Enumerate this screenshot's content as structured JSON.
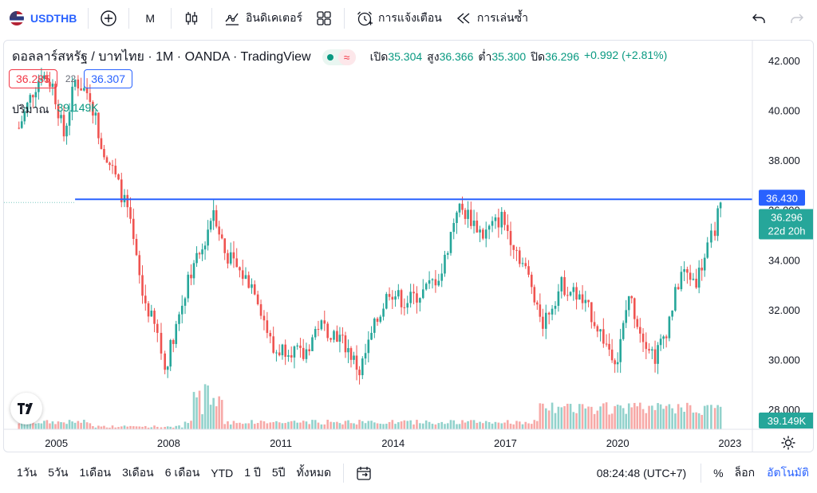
{
  "toolbar": {
    "symbol": "USDTHB",
    "interval": "M",
    "indicators_label": "อินดิเคเตอร์",
    "alerts_label": "การแจ้งเตือน",
    "replay_label": "การเล่นซ้ำ"
  },
  "legend": {
    "title": "ดอลลาร์สหรัฐ / บาทไทย · 1M · OANDA · TradingView",
    "live_symbol": "≈",
    "open_label": "เปิด",
    "open": "35.304",
    "high_label": "สูง",
    "high": "36.366",
    "low_label": "ต่ำ",
    "low": "35.300",
    "close_label": "ปิด",
    "close": "36.296",
    "change": "+0.992 (+2.81%)",
    "bid": "36.285",
    "spread": "22",
    "ask": "36.307",
    "volume_label": "ปริมาณ",
    "volume": "39.149K"
  },
  "axis": {
    "price_ticks": [
      "42.000",
      "40.000",
      "38.000",
      "36.000",
      "34.000",
      "32.000",
      "30.000",
      "28.000"
    ],
    "time_ticks": [
      "2005",
      "2008",
      "2011",
      "2014",
      "2017",
      "2020",
      "2023"
    ],
    "line_label": "36.430",
    "last_price_label": "36.296",
    "countdown_label": "22d 20h",
    "volume_label": "39.149K"
  },
  "colors": {
    "up": "#26a69a",
    "down": "#ef5350",
    "line": "#2962ff",
    "accent": "#2962ff"
  },
  "chart_data": {
    "type": "candlestick",
    "symbol": "USDTHB",
    "interval": "1M",
    "x_range": [
      2003.6,
      2023.6
    ],
    "y_range": [
      27.2,
      42.8
    ],
    "horizontal_line": 36.43,
    "price_path": [
      [
        2004.0,
        39.3
      ],
      [
        2004.3,
        40.5
      ],
      [
        2004.6,
        41.5
      ],
      [
        2004.9,
        41.0
      ],
      [
        2005.2,
        39.0
      ],
      [
        2005.5,
        41.2
      ],
      [
        2005.9,
        40.6
      ],
      [
        2006.2,
        38.7
      ],
      [
        2006.5,
        37.6
      ],
      [
        2006.9,
        36.0
      ],
      [
        2007.3,
        32.6
      ],
      [
        2007.7,
        31.0
      ],
      [
        2007.9,
        29.6
      ],
      [
        2008.2,
        31.4
      ],
      [
        2008.6,
        33.5
      ],
      [
        2008.9,
        34.4
      ],
      [
        2009.2,
        36.1
      ],
      [
        2009.5,
        34.3
      ],
      [
        2009.9,
        33.5
      ],
      [
        2010.3,
        32.9
      ],
      [
        2010.8,
        30.3
      ],
      [
        2011.2,
        30.5
      ],
      [
        2011.6,
        30.1
      ],
      [
        2012.0,
        31.4
      ],
      [
        2012.5,
        31.0
      ],
      [
        2012.8,
        30.4
      ],
      [
        2013.1,
        29.5
      ],
      [
        2013.5,
        31.3
      ],
      [
        2013.9,
        32.8
      ],
      [
        2014.3,
        32.3
      ],
      [
        2014.8,
        32.7
      ],
      [
        2015.3,
        33.5
      ],
      [
        2015.7,
        36.1
      ],
      [
        2016.0,
        35.8
      ],
      [
        2016.4,
        35.0
      ],
      [
        2016.9,
        35.7
      ],
      [
        2017.3,
        34.4
      ],
      [
        2017.7,
        33.0
      ],
      [
        2018.0,
        31.5
      ],
      [
        2018.5,
        33.0
      ],
      [
        2018.9,
        32.6
      ],
      [
        2019.3,
        31.8
      ],
      [
        2019.7,
        30.6
      ],
      [
        2020.0,
        30.0
      ],
      [
        2020.3,
        32.6
      ],
      [
        2020.6,
        31.2
      ],
      [
        2021.0,
        30.1
      ],
      [
        2021.3,
        31.2
      ],
      [
        2021.7,
        33.5
      ],
      [
        2022.1,
        33.2
      ],
      [
        2022.4,
        34.4
      ],
      [
        2022.6,
        35.3
      ],
      [
        2022.75,
        36.3
      ]
    ]
  },
  "bottom": {
    "ranges": [
      "1วัน",
      "5วัน",
      "1เดือน",
      "3เดือน",
      "6 เดือน",
      "YTD",
      "1 ปี",
      "5ปี",
      "ทั้งหมด"
    ],
    "time": "08:24:48 (UTC+7)",
    "percent": "%",
    "log": "ล็อก",
    "auto": "อัตโนมัติ"
  }
}
